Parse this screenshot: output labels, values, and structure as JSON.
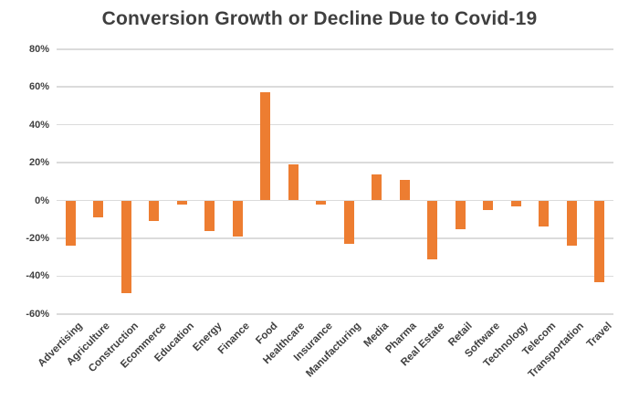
{
  "colors": {
    "background": "#FFFFFF",
    "bar": "#ED7D31",
    "gridline": "#DBDBDB",
    "title_text": "#3F3F3F",
    "axis_text": "#404040"
  },
  "chart_data": {
    "type": "bar",
    "title": "Conversion Growth or Decline Due to Covid-19",
    "categories": [
      "Advertising",
      "Agriculture",
      "Construction",
      "Ecommerce",
      "Education",
      "Energy",
      "Finance",
      "Food",
      "Healthcare",
      "Insurance",
      "Manufacturing",
      "Media",
      "Pharma",
      "Real Estate",
      "Retail",
      "Software",
      "Technology",
      "Telecom",
      "Transportation",
      "Travel"
    ],
    "values": [
      -24,
      -9,
      -49,
      -11,
      -2,
      -16,
      -19,
      57,
      19,
      -2,
      -23,
      14,
      11,
      -31,
      -15,
      -5,
      -3,
      -14,
      -24,
      -43
    ],
    "value_suffix": "%",
    "xlabel": "",
    "ylabel": "",
    "ylim": [
      -60,
      80
    ],
    "ytick_step": 20,
    "ytick_labels": [
      "80%",
      "60%",
      "40%",
      "20%",
      "0%",
      "-20%",
      "-40%",
      "-60%"
    ],
    "grid": true,
    "legend": false,
    "bar_color": "#ED7D31",
    "x_label_rotation_deg": 45
  }
}
